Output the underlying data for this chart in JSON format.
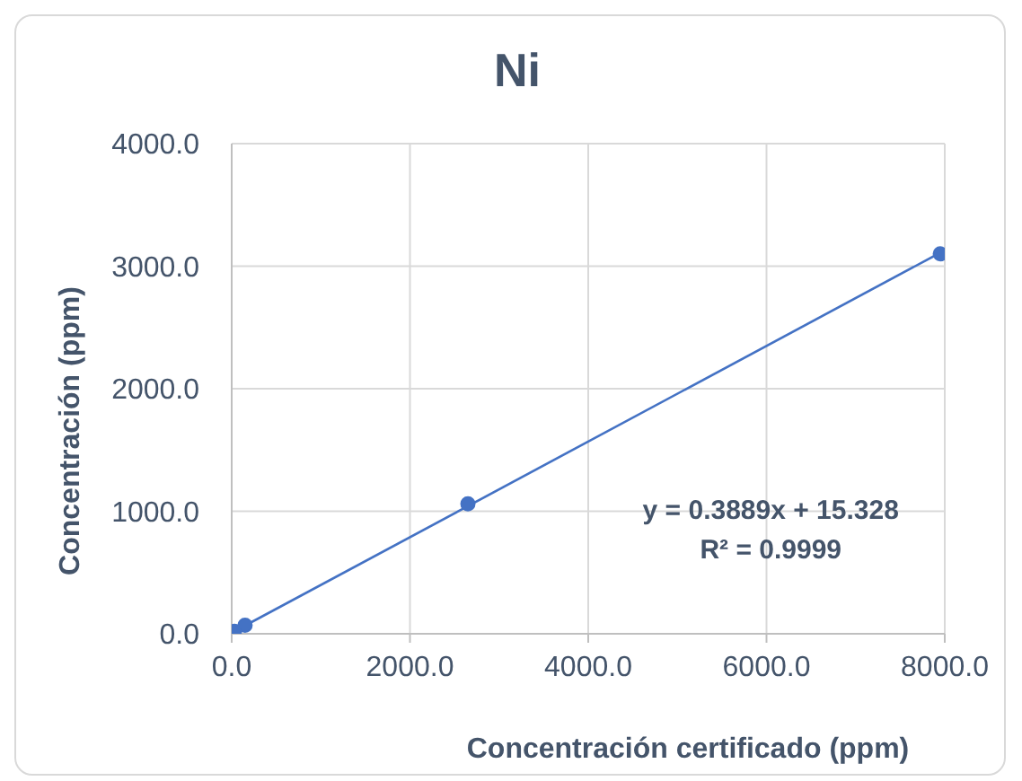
{
  "chart_data": {
    "type": "scatter",
    "title": "Ni",
    "xlabel": "Concentración certificado (ppm)",
    "ylabel": "Concentración (ppm)",
    "annotations": [
      "y = 0.3889x + 15.328",
      "R² = 0.9999"
    ],
    "series": [
      {
        "color": "#4472c4",
        "x": [
          30,
          150,
          2650,
          7950
        ],
        "values": [
          20,
          70,
          1060,
          3100
        ]
      },
      {
        "type": "line",
        "color": "#4472c4",
        "marker": "none",
        "x": [
          30,
          7950
        ],
        "values": [
          20,
          3110
        ]
      }
    ],
    "xlim": [
      0,
      8000
    ],
    "xticks": [
      {
        "value": 0,
        "label": "0.0"
      },
      {
        "value": 2000,
        "label": "2000.0"
      },
      {
        "value": 4000,
        "label": "4000.0"
      },
      {
        "value": 6000,
        "label": "6000.0"
      },
      {
        "value": 8000,
        "label": "8000.0"
      }
    ],
    "ylim": [
      0,
      4000
    ],
    "yticks": [
      {
        "value": 0,
        "label": "0.0"
      },
      {
        "value": 1000,
        "label": "1000.0"
      },
      {
        "value": 2000,
        "label": "2000.0"
      },
      {
        "value": 3000,
        "label": "3000.0"
      },
      {
        "value": 4000,
        "label": "4000.0"
      }
    ],
    "grid": true,
    "marker": "circle",
    "legend": false
  }
}
